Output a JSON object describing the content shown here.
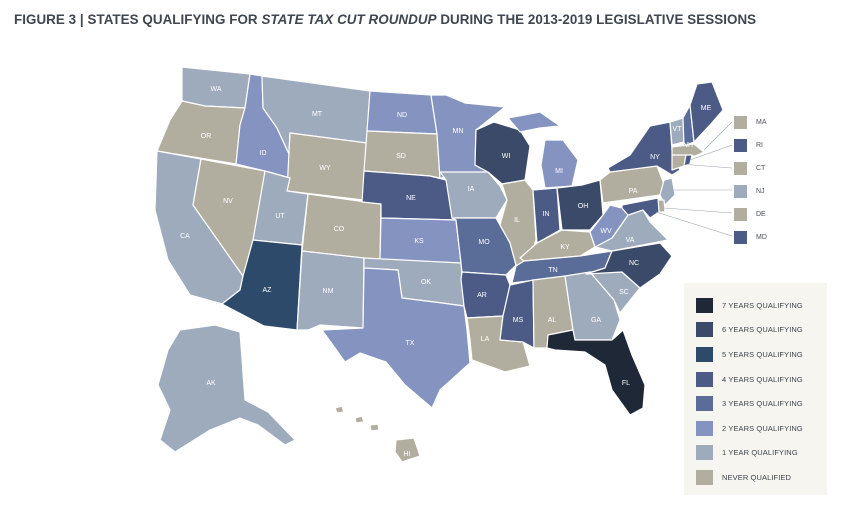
{
  "title": {
    "prefix": "FIGURE 3 | STATES QUALIFYING FOR ",
    "emphasis": "STATE TAX CUT ROUNDUP",
    "suffix": " DURING THE 2013-2019 LEGISLATIVE SESSIONS"
  },
  "colors": {
    "7": "#1f2837",
    "6": "#3b4a68",
    "5": "#2e4a6b",
    "4": "#4b5b86",
    "3": "#5a6c98",
    "2": "#8593c0",
    "1": "#9eabbd",
    "0": "#b2ae9f"
  },
  "legend": [
    {
      "years": 7,
      "label": "7 YEARS QUALIFYING"
    },
    {
      "years": 6,
      "label": "6 YEARS QUALIFYING"
    },
    {
      "years": 5,
      "label": "5 YEARS QUALIFYING"
    },
    {
      "years": 4,
      "label": "4 YEARS QUALIFYING"
    },
    {
      "years": 3,
      "label": "3 YEARS QUALIFYING"
    },
    {
      "years": 2,
      "label": "2 YEARS QUALIFYING"
    },
    {
      "years": 1,
      "label": "1 YEAR QUALIFYING"
    },
    {
      "years": 0,
      "label": "NEVER QUALIFIED"
    }
  ],
  "small_state_keys": [
    {
      "abbr": "MA",
      "years": 0
    },
    {
      "abbr": "RI",
      "years": 4
    },
    {
      "abbr": "CT",
      "years": 0
    },
    {
      "abbr": "NJ",
      "years": 1
    },
    {
      "abbr": "DE",
      "years": 0
    },
    {
      "abbr": "MD",
      "years": 4
    }
  ],
  "states": {
    "WA": 1,
    "OR": 0,
    "CA": 1,
    "NV": 0,
    "ID": 2,
    "MT": 1,
    "WY": 0,
    "UT": 1,
    "AZ": 5,
    "CO": 0,
    "NM": 1,
    "ND": 2,
    "SD": 0,
    "NE": 4,
    "KS": 2,
    "OK": 1,
    "TX": 2,
    "MN": 2,
    "IA": 1,
    "MO": 3,
    "AR": 4,
    "LA": 0,
    "WI": 6,
    "IL": 0,
    "MI": 2,
    "IN": 4,
    "OH": 6,
    "KY": 0,
    "TN": 3,
    "MS": 4,
    "AL": 0,
    "GA": 1,
    "FL": 7,
    "SC": 1,
    "NC": 6,
    "VA": 1,
    "WV": 2,
    "PA": 0,
    "NY": 4,
    "VT": 1,
    "NH": 3,
    "ME": 4,
    "AK": 1,
    "HI": 0,
    "MA": 0,
    "RI": 4,
    "CT": 0,
    "NJ": 1,
    "DE": 0,
    "MD": 4
  }
}
